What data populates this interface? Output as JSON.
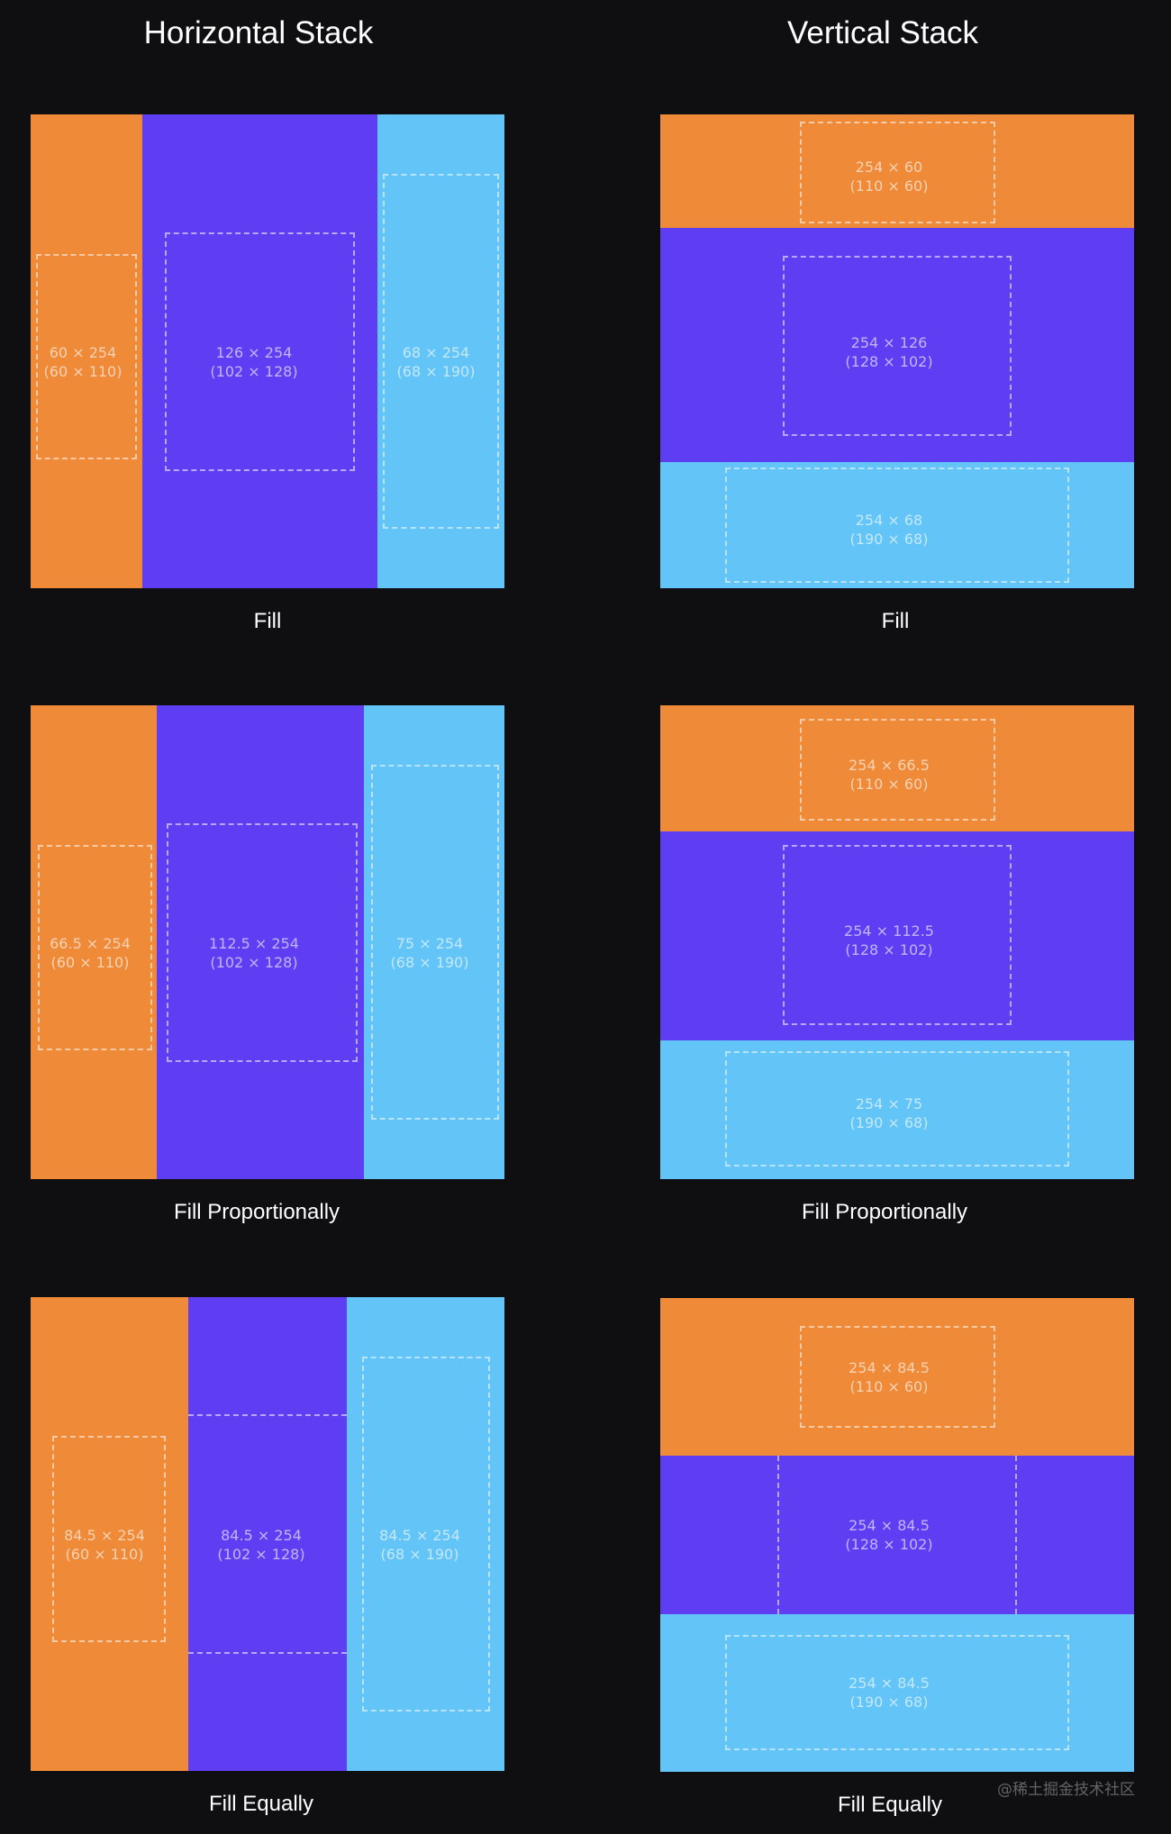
{
  "headers": {
    "horizontal": "Horizontal Stack",
    "vertical": "Vertical Stack"
  },
  "colors": {
    "background": "#0f0f12",
    "orange": "#ee8a38",
    "purple": "#5e3df2",
    "blue": "#63c4f8",
    "dashed_outline": "rgba(255,255,255,0.55)"
  },
  "examples": {
    "h_fill": {
      "caption": "Fill",
      "segments": [
        {
          "color": "orange",
          "size": "60 × 254",
          "intrinsic": "(60 × 110)"
        },
        {
          "color": "purple",
          "size": "126 × 254",
          "intrinsic": "(102 × 128)"
        },
        {
          "color": "blue",
          "size": "68 × 254",
          "intrinsic": "(68 × 190)"
        }
      ]
    },
    "v_fill": {
      "caption": "Fill",
      "segments": [
        {
          "color": "orange",
          "size": "254 × 60",
          "intrinsic": "(110 × 60)"
        },
        {
          "color": "purple",
          "size": "254 × 126",
          "intrinsic": "(128 × 102)"
        },
        {
          "color": "blue",
          "size": "254 × 68",
          "intrinsic": "(190 × 68)"
        }
      ]
    },
    "h_prop": {
      "caption": "Fill Proportionally",
      "segments": [
        {
          "color": "orange",
          "size": "66.5 × 254",
          "intrinsic": "(60 × 110)"
        },
        {
          "color": "purple",
          "size": "112.5 × 254",
          "intrinsic": "(102 × 128)"
        },
        {
          "color": "blue",
          "size": "75 × 254",
          "intrinsic": "(68 × 190)"
        }
      ]
    },
    "v_prop": {
      "caption": "Fill Proportionally",
      "segments": [
        {
          "color": "orange",
          "size": "254 × 66.5",
          "intrinsic": "(110 × 60)"
        },
        {
          "color": "purple",
          "size": "254 × 112.5",
          "intrinsic": "(128 × 102)"
        },
        {
          "color": "blue",
          "size": "254 × 75",
          "intrinsic": "(190 × 68)"
        }
      ]
    },
    "h_equal": {
      "caption": "Fill Equally",
      "segments": [
        {
          "color": "orange",
          "size": "84.5 × 254",
          "intrinsic": "(60 × 110)"
        },
        {
          "color": "purple",
          "size": "84.5 × 254",
          "intrinsic": "(102 × 128)"
        },
        {
          "color": "blue",
          "size": "84.5 × 254",
          "intrinsic": "(68 × 190)"
        }
      ]
    },
    "v_equal": {
      "caption": "Fill Equally",
      "segments": [
        {
          "color": "orange",
          "size": "254 × 84.5",
          "intrinsic": "(110 × 60)"
        },
        {
          "color": "purple",
          "size": "254 × 84.5",
          "intrinsic": "(128 × 102)"
        },
        {
          "color": "blue",
          "size": "254 × 84.5",
          "intrinsic": "(190 × 68)"
        }
      ]
    }
  },
  "watermark": "@稀土掘金技术社区"
}
